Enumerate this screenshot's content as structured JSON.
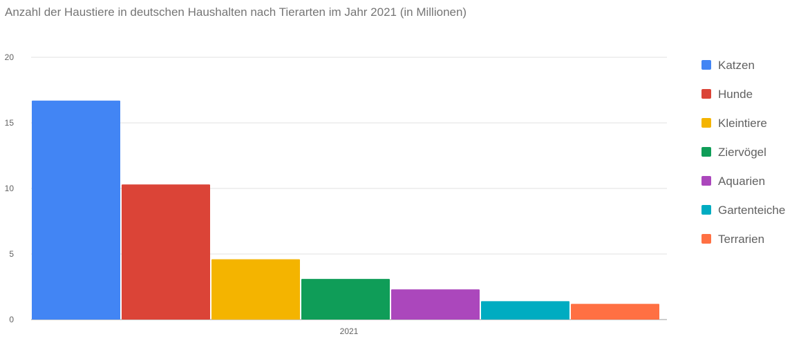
{
  "chart_data": {
    "type": "bar",
    "title": "Anzahl der Haustiere in deutschen Haushalten nach Tierarten im Jahr 2021 (in Millionen)",
    "categories": [
      "2021"
    ],
    "series": [
      {
        "name": "Katzen",
        "values": [
          16.7
        ],
        "color": "#4285f4"
      },
      {
        "name": "Hunde",
        "values": [
          10.3
        ],
        "color": "#db4437"
      },
      {
        "name": "Kleintiere",
        "values": [
          4.6
        ],
        "color": "#f4b400"
      },
      {
        "name": "Ziervögel",
        "values": [
          3.1
        ],
        "color": "#0f9d58"
      },
      {
        "name": "Aquarien",
        "values": [
          2.3
        ],
        "color": "#ab47bc"
      },
      {
        "name": "Gartenteiche",
        "values": [
          1.4
        ],
        "color": "#00acc1"
      },
      {
        "name": "Terrarien",
        "values": [
          1.2
        ],
        "color": "#ff7043"
      }
    ],
    "yticks": [
      "0",
      "5",
      "10",
      "15",
      "20"
    ],
    "ylim": [
      0,
      20
    ],
    "grid": true,
    "legend": "right"
  }
}
